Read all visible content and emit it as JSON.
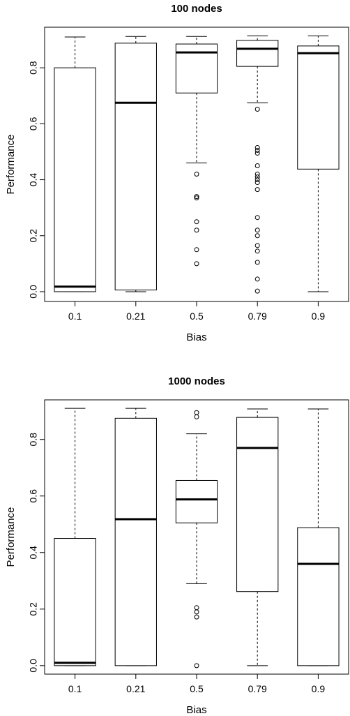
{
  "chart_data": [
    {
      "type": "boxplot",
      "title": "100 nodes",
      "xlabel": "Bias",
      "ylabel": "Performance",
      "categories": [
        "0.1",
        "0.21",
        "0.5",
        "0.79",
        "0.9"
      ],
      "y_ticks": [
        "0.0",
        "0.2",
        "0.4",
        "0.6",
        "0.8"
      ],
      "ylim": [
        -0.035,
        0.945
      ],
      "boxes": [
        {
          "whisker_low": 0.0,
          "q1": 0.0,
          "median": 0.018,
          "q3": 0.8,
          "whisker_high": 0.91,
          "outliers": []
        },
        {
          "whisker_low": 0.0,
          "q1": 0.006,
          "median": 0.675,
          "q3": 0.888,
          "whisker_high": 0.912,
          "outliers": []
        },
        {
          "whisker_low": 0.46,
          "q1": 0.71,
          "median": 0.855,
          "q3": 0.885,
          "whisker_high": 0.912,
          "outliers": [
            0.42,
            0.34,
            0.335,
            0.25,
            0.22,
            0.15,
            0.1
          ]
        },
        {
          "whisker_low": 0.675,
          "q1": 0.805,
          "median": 0.868,
          "q3": 0.898,
          "whisker_high": 0.914,
          "outliers": [
            0.652,
            0.515,
            0.505,
            0.495,
            0.45,
            0.42,
            0.41,
            0.4,
            0.39,
            0.365,
            0.265,
            0.22,
            0.2,
            0.165,
            0.145,
            0.105,
            0.045,
            0.002
          ]
        },
        {
          "whisker_low": 0.0,
          "q1": 0.438,
          "median": 0.852,
          "q3": 0.878,
          "whisker_high": 0.914,
          "outliers": []
        }
      ]
    },
    {
      "type": "boxplot",
      "title": "1000 nodes",
      "xlabel": "Bias",
      "ylabel": "Performance",
      "categories": [
        "0.1",
        "0.21",
        "0.5",
        "0.79",
        "0.9"
      ],
      "y_ticks": [
        "0.0",
        "0.2",
        "0.4",
        "0.6",
        "0.8"
      ],
      "ylim": [
        -0.03,
        0.94
      ],
      "boxes": [
        {
          "whisker_low": 0.0,
          "q1": 0.0,
          "median": 0.01,
          "q3": 0.45,
          "whisker_high": 0.91,
          "outliers": []
        },
        {
          "whisker_low": 0.0,
          "q1": 0.0,
          "median": 0.518,
          "q3": 0.875,
          "whisker_high": 0.91,
          "outliers": []
        },
        {
          "whisker_low": 0.29,
          "q1": 0.505,
          "median": 0.588,
          "q3": 0.655,
          "whisker_high": 0.82,
          "outliers": [
            0.895,
            0.88,
            0.205,
            0.19,
            0.172,
            0.0
          ]
        },
        {
          "whisker_low": 0.0,
          "q1": 0.262,
          "median": 0.77,
          "q3": 0.878,
          "whisker_high": 0.908,
          "outliers": []
        },
        {
          "whisker_low": 0.0,
          "q1": 0.0,
          "median": 0.36,
          "q3": 0.488,
          "whisker_high": 0.908,
          "outliers": []
        }
      ]
    }
  ]
}
